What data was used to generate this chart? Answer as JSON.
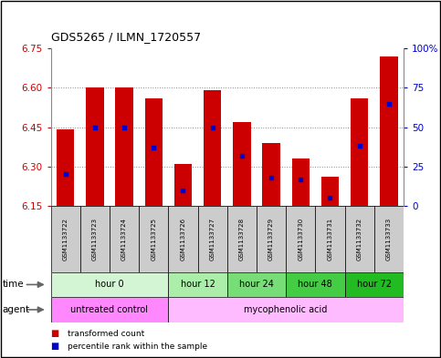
{
  "title": "GDS5265 / ILMN_1720557",
  "samples": [
    "GSM1133722",
    "GSM1133723",
    "GSM1133724",
    "GSM1133725",
    "GSM1133726",
    "GSM1133727",
    "GSM1133728",
    "GSM1133729",
    "GSM1133730",
    "GSM1133731",
    "GSM1133732",
    "GSM1133733"
  ],
  "bar_values": [
    6.44,
    6.6,
    6.6,
    6.56,
    6.31,
    6.59,
    6.47,
    6.39,
    6.33,
    6.26,
    6.56,
    6.72
  ],
  "percentile_values": [
    20,
    50,
    50,
    37,
    10,
    50,
    32,
    18,
    17,
    5,
    38,
    65
  ],
  "ylim_left": [
    6.15,
    6.75
  ],
  "ylim_right": [
    0,
    100
  ],
  "yticks_left": [
    6.15,
    6.3,
    6.45,
    6.6,
    6.75
  ],
  "yticks_right": [
    0,
    25,
    50,
    75,
    100
  ],
  "bar_color": "#cc0000",
  "percentile_color": "#0000cc",
  "bar_bottom": 6.15,
  "time_groups": [
    {
      "label": "hour 0",
      "start": 0,
      "end": 4,
      "color": "#d4f5d4"
    },
    {
      "label": "hour 12",
      "start": 4,
      "end": 6,
      "color": "#aaeeaa"
    },
    {
      "label": "hour 24",
      "start": 6,
      "end": 8,
      "color": "#77dd77"
    },
    {
      "label": "hour 48",
      "start": 8,
      "end": 10,
      "color": "#44cc44"
    },
    {
      "label": "hour 72",
      "start": 10,
      "end": 12,
      "color": "#22bb22"
    }
  ],
  "agent_groups": [
    {
      "label": "untreated control",
      "start": 0,
      "end": 4,
      "color": "#ff88ff"
    },
    {
      "label": "mycophenolic acid",
      "start": 4,
      "end": 12,
      "color": "#ffbbff"
    }
  ],
  "grid_yticks": [
    6.3,
    6.45,
    6.6
  ],
  "grid_color": "#888888",
  "bg_color": "#ffffff",
  "sample_bg_color": "#cccccc",
  "left_tick_color": "#cc0000",
  "right_tick_color": "#0000cc"
}
